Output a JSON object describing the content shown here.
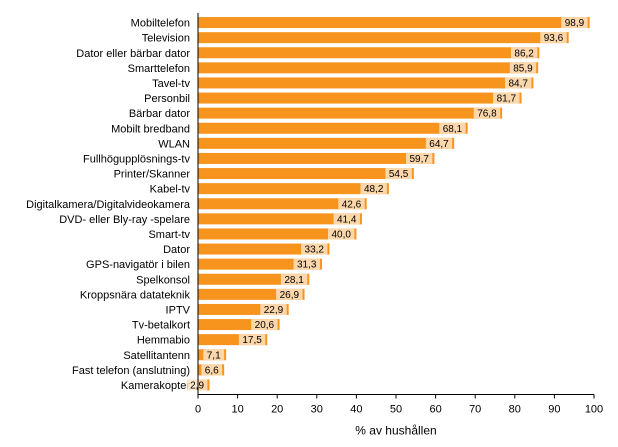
{
  "chart_data": {
    "type": "bar",
    "orientation": "horizontal",
    "categories": [
      "Mobiltelefon",
      "Television",
      "Dator eller bärbar dator",
      "Smarttelefon",
      "Tavel-tv",
      "Personbil",
      "Bärbar dator",
      "Mobilt bredband",
      "WLAN",
      "Fullhögupplösnings-tv",
      "Printer/Skanner",
      "Kabel-tv",
      "Digitalkamera/Digitalvideokamera",
      "DVD- eller Bly-ray -spelare",
      "Smart-tv",
      "Dator",
      "GPS-navigatör i bilen",
      "Spelkonsol",
      "Kroppsnära datateknik",
      "IPTV",
      "Tv-betalkort",
      "Hemmabio",
      "Satellitantenn",
      "Fast telefon (anslutning)",
      "Kamerakopter"
    ],
    "values": [
      98.9,
      93.6,
      86.2,
      85.9,
      84.7,
      81.7,
      76.8,
      68.1,
      64.7,
      59.7,
      54.5,
      48.2,
      42.6,
      41.4,
      40.0,
      33.2,
      31.3,
      28.1,
      26.9,
      22.9,
      20.6,
      17.5,
      7.1,
      6.6,
      2.9
    ],
    "value_labels": [
      "98,9",
      "93,6",
      "86,2",
      "85,9",
      "84,7",
      "81,7",
      "76,8",
      "68,1",
      "64,7",
      "59,7",
      "54,5",
      "48,2",
      "42,6",
      "41,4",
      "40,0",
      "33,2",
      "31,3",
      "28,1",
      "26,9",
      "22,9",
      "20,6",
      "17,5",
      "7,1",
      "6,6",
      "2,9"
    ],
    "xlabel": "% av hushållen",
    "ylabel": "",
    "title": "",
    "xlim": [
      0,
      100
    ],
    "xticks": [
      "0",
      "10",
      "20",
      "30",
      "40",
      "50",
      "60",
      "70",
      "80",
      "90",
      "100"
    ],
    "grid": false,
    "bar_color": "#F7941D",
    "label_background": "#FCE3C4"
  }
}
